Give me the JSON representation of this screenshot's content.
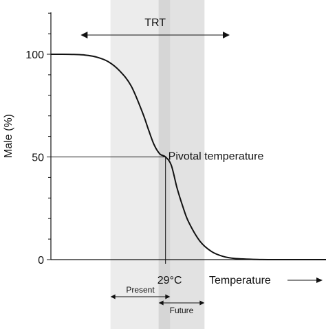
{
  "chart_data": {
    "type": "line",
    "ylabel": "Male (%)",
    "xlabel": "Temperature",
    "xlabel_arrow": "→",
    "y_ticks": [
      0,
      50,
      100
    ],
    "ylim": [
      0,
      100
    ],
    "xlim": [
      24,
      36
    ],
    "series": [
      {
        "values_x": [
          24,
          24.5,
          25,
          25.5,
          26,
          26.5,
          27,
          27.5,
          28,
          28.25,
          28.5,
          28.75,
          29,
          29.25,
          29.5,
          29.75,
          30,
          30.5,
          31,
          31.5,
          32,
          33,
          34,
          35,
          36
        ],
        "values_y": [
          100,
          100,
          99.9,
          99.6,
          98.6,
          96.4,
          91.9,
          84.6,
          71.5,
          63.5,
          56,
          51.5,
          50,
          46,
          35,
          26,
          18.5,
          9,
          4,
          1.6,
          0.6,
          0.1,
          0,
          0,
          0
        ]
      }
    ],
    "pivotal": {
      "x": 29,
      "y": 50,
      "label": "Pivotal temperature",
      "x_label": "29°C"
    },
    "trt": {
      "label": "TRT",
      "range": [
        25.3,
        31.8
      ]
    },
    "bands": [
      {
        "name": "Present",
        "range": [
          26.6,
          29.2
        ],
        "color": "#ececec"
      },
      {
        "name": "Future",
        "range": [
          28.7,
          30.7
        ],
        "color": "#e2e2e2"
      }
    ],
    "bands_overlap_color": "#d6d6d6"
  }
}
